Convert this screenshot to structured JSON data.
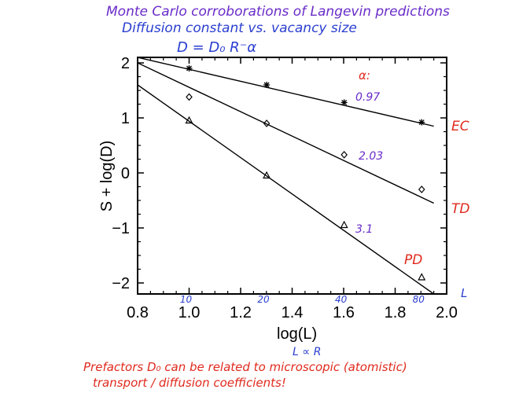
{
  "chart_data": {
    "type": "scatter",
    "title_lines": [
      "Monte Carlo corroborations of Langevin predictions",
      "Diffusion constant vs. vacancy size",
      "D = D₀ R⁻α"
    ],
    "xlabel": "log(L)",
    "xlabel_note": "L ∝ R",
    "ylabel": "S + log(D)",
    "xlim": [
      0.8,
      2.0
    ],
    "ylim": [
      -2.2,
      2.1
    ],
    "x_ticks": [
      "0.8",
      "1.0",
      "1.2",
      "1.4",
      "1.6",
      "1.8",
      "2.0"
    ],
    "y_ticks": [
      "-2",
      "-1",
      "0",
      "1",
      "2"
    ],
    "alpha_header": "α:",
    "size_labels": [
      {
        "x": 1.0,
        "label": "10"
      },
      {
        "x": 1.301,
        "label": "20"
      },
      {
        "x": 1.602,
        "label": "40"
      },
      {
        "x": 1.903,
        "label": "80"
      }
    ],
    "series": [
      {
        "name": "EC",
        "marker": "asterisk",
        "alpha_label": "0.97",
        "x": [
          1.0,
          1.301,
          1.602,
          1.903
        ],
        "y": [
          1.9,
          1.6,
          1.28,
          0.92
        ],
        "fit": {
          "x": [
            0.8,
            1.95
          ],
          "y": [
            2.1,
            0.85
          ]
        }
      },
      {
        "name": "TD",
        "marker": "diamond",
        "alpha_label": "2.03",
        "x": [
          1.0,
          1.301,
          1.602,
          1.903
        ],
        "y": [
          1.38,
          0.9,
          0.33,
          -0.3
        ],
        "fit": {
          "x": [
            0.8,
            1.95
          ],
          "y": [
            2.0,
            -0.55
          ]
        }
      },
      {
        "name": "PD",
        "marker": "triangle",
        "alpha_label": "3.1",
        "x": [
          1.0,
          1.301,
          1.602,
          1.903
        ],
        "y": [
          0.95,
          -0.05,
          -0.95,
          -1.9
        ],
        "fit": {
          "x": [
            0.8,
            1.95
          ],
          "y": [
            1.6,
            -2.2
          ]
        }
      }
    ],
    "side_note": "L",
    "footnote_lines": [
      "Prefactors D₀ can be related to microscopic (atomistic)",
      "transport / diffusion coefficients!"
    ],
    "colors": {
      "title": "#6a2cc9",
      "red": "#e02a1e",
      "blue": "#2a3fd0",
      "purple": "#6a2cc9",
      "axis": "#000000"
    }
  }
}
